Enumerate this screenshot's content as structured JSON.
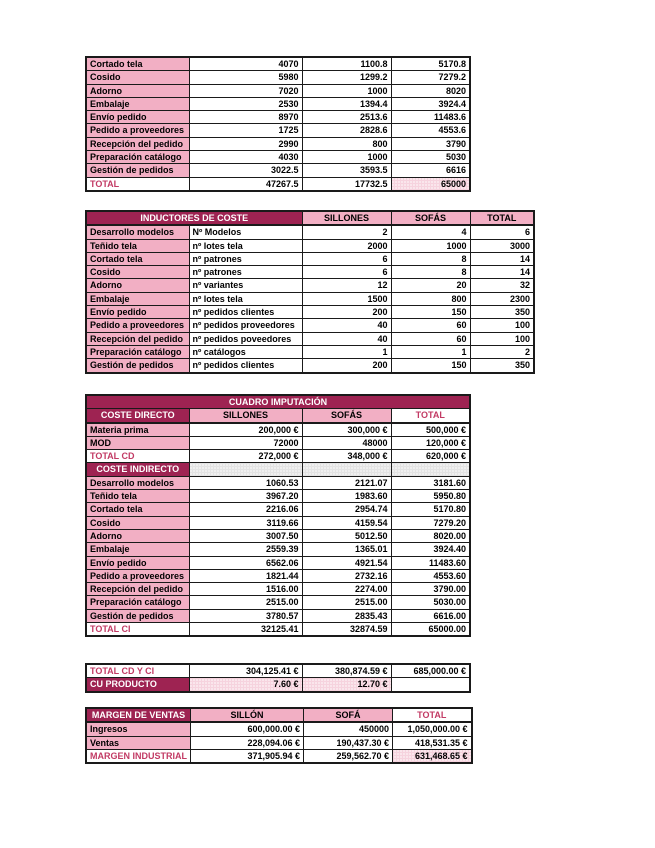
{
  "colors": {
    "maroon": "#9E2352",
    "pink": "#F2AFC4",
    "dotted_pink": "#F6D3DE",
    "red_text": "#C23A64",
    "dotted_gray": "#E3E3E3",
    "border": "#1A1A1A"
  },
  "tables": [
    {
      "id": "t1",
      "name": "activity-cost-totals-table",
      "rows": [
        {
          "cells": [
            {
              "t": "Cortado tela",
              "s": "p"
            },
            {
              "t": "4070",
              "s": "n"
            },
            {
              "t": "1100.8",
              "s": "n"
            },
            {
              "t": "5170.8",
              "s": "n"
            }
          ]
        },
        {
          "cells": [
            {
              "t": "Cosido",
              "s": "p"
            },
            {
              "t": "5980",
              "s": "n"
            },
            {
              "t": "1299.2",
              "s": "n"
            },
            {
              "t": "7279.2",
              "s": "n"
            }
          ]
        },
        {
          "cells": [
            {
              "t": "Adorno",
              "s": "p"
            },
            {
              "t": "7020",
              "s": "n"
            },
            {
              "t": "1000",
              "s": "n"
            },
            {
              "t": "8020",
              "s": "n"
            }
          ]
        },
        {
          "cells": [
            {
              "t": "Embalaje",
              "s": "p"
            },
            {
              "t": "2530",
              "s": "n"
            },
            {
              "t": "1394.4",
              "s": "n"
            },
            {
              "t": "3924.4",
              "s": "n"
            }
          ]
        },
        {
          "cells": [
            {
              "t": "Envío pedido",
              "s": "p"
            },
            {
              "t": "8970",
              "s": "n"
            },
            {
              "t": "2513.6",
              "s": "n"
            },
            {
              "t": "11483.6",
              "s": "n"
            }
          ]
        },
        {
          "cells": [
            {
              "t": "Pedido a proveedores",
              "s": "p"
            },
            {
              "t": "1725",
              "s": "n"
            },
            {
              "t": "2828.6",
              "s": "n"
            },
            {
              "t": "4553.6",
              "s": "n"
            }
          ]
        },
        {
          "cells": [
            {
              "t": "Recepción del pedido",
              "s": "p"
            },
            {
              "t": "2990",
              "s": "n"
            },
            {
              "t": "800",
              "s": "n"
            },
            {
              "t": "3790",
              "s": "n"
            }
          ]
        },
        {
          "cells": [
            {
              "t": "Preparación catálogo",
              "s": "p"
            },
            {
              "t": "4030",
              "s": "n"
            },
            {
              "t": "1000",
              "s": "n"
            },
            {
              "t": "5030",
              "s": "n"
            }
          ]
        },
        {
          "cells": [
            {
              "t": "Gestión de pedidos",
              "s": "p"
            },
            {
              "t": "3022.5",
              "s": "n"
            },
            {
              "t": "3593.5",
              "s": "n"
            },
            {
              "t": "6616",
              "s": "n"
            }
          ]
        },
        {
          "cells": [
            {
              "t": "TOTAL",
              "s": "r"
            },
            {
              "t": "47267.5",
              "s": "n"
            },
            {
              "t": "17732.5",
              "s": "n"
            },
            {
              "t": "65000",
              "s": "dp"
            }
          ]
        }
      ]
    },
    {
      "id": "t2",
      "name": "cost-drivers-table",
      "rows": [
        {
          "hd": true,
          "cells": [
            {
              "t": "INDUCTORES DE COSTE",
              "s": "m",
              "span": 2
            },
            {
              "t": "SILLONES",
              "s": "hp"
            },
            {
              "t": "SOFÁS",
              "s": "hp"
            },
            {
              "t": "TOTAL",
              "s": "hp"
            }
          ]
        },
        {
          "cells": [
            {
              "t": "Desarrollo modelos",
              "s": "p"
            },
            {
              "t": "Nº Modelos",
              "s": "w"
            },
            {
              "t": "2",
              "s": "n"
            },
            {
              "t": "4",
              "s": "n"
            },
            {
              "t": "6",
              "s": "n"
            }
          ]
        },
        {
          "cells": [
            {
              "t": "Teñido tela",
              "s": "p"
            },
            {
              "t": "nº lotes tela",
              "s": "w"
            },
            {
              "t": "2000",
              "s": "n"
            },
            {
              "t": "1000",
              "s": "n"
            },
            {
              "t": "3000",
              "s": "n"
            }
          ]
        },
        {
          "cells": [
            {
              "t": "Cortado tela",
              "s": "p"
            },
            {
              "t": "nº patrones",
              "s": "w"
            },
            {
              "t": "6",
              "s": "n"
            },
            {
              "t": "8",
              "s": "n"
            },
            {
              "t": "14",
              "s": "n"
            }
          ]
        },
        {
          "cells": [
            {
              "t": "Cosido",
              "s": "p"
            },
            {
              "t": "nº patrones",
              "s": "w"
            },
            {
              "t": "6",
              "s": "n"
            },
            {
              "t": "8",
              "s": "n"
            },
            {
              "t": "14",
              "s": "n"
            }
          ]
        },
        {
          "cells": [
            {
              "t": "Adorno",
              "s": "p"
            },
            {
              "t": "nº variantes",
              "s": "w"
            },
            {
              "t": "12",
              "s": "n"
            },
            {
              "t": "20",
              "s": "n"
            },
            {
              "t": "32",
              "s": "n"
            }
          ]
        },
        {
          "cells": [
            {
              "t": "Embalaje",
              "s": "p"
            },
            {
              "t": "nº lotes tela",
              "s": "w"
            },
            {
              "t": "1500",
              "s": "n"
            },
            {
              "t": "800",
              "s": "n"
            },
            {
              "t": "2300",
              "s": "n"
            }
          ]
        },
        {
          "cells": [
            {
              "t": "Envío pedido",
              "s": "p"
            },
            {
              "t": "nº pedidos clientes",
              "s": "w"
            },
            {
              "t": "200",
              "s": "n"
            },
            {
              "t": "150",
              "s": "n"
            },
            {
              "t": "350",
              "s": "n"
            }
          ]
        },
        {
          "cells": [
            {
              "t": "Pedido a proveedores",
              "s": "p"
            },
            {
              "t": "nº pedidos proveedores",
              "s": "w"
            },
            {
              "t": "40",
              "s": "n"
            },
            {
              "t": "60",
              "s": "n"
            },
            {
              "t": "100",
              "s": "n"
            }
          ]
        },
        {
          "cells": [
            {
              "t": "Recepción del pedido",
              "s": "p"
            },
            {
              "t": "nº pedidos poveedores",
              "s": "w"
            },
            {
              "t": "40",
              "s": "n"
            },
            {
              "t": "60",
              "s": "n"
            },
            {
              "t": "100",
              "s": "n"
            }
          ]
        },
        {
          "cells": [
            {
              "t": "Preparación catálogo",
              "s": "p"
            },
            {
              "t": "nº catálogos",
              "s": "w"
            },
            {
              "t": "1",
              "s": "n"
            },
            {
              "t": "1",
              "s": "n"
            },
            {
              "t": "2",
              "s": "n"
            }
          ]
        },
        {
          "cells": [
            {
              "t": "Gestión de pedidos",
              "s": "p"
            },
            {
              "t": "nº pedidos clientes",
              "s": "w"
            },
            {
              "t": "200",
              "s": "n"
            },
            {
              "t": "150",
              "s": "n"
            },
            {
              "t": "350",
              "s": "n"
            }
          ]
        }
      ]
    },
    {
      "id": "t3",
      "name": "imputation-table",
      "rows": [
        {
          "cells": [
            {
              "t": "CUADRO IMPUTACIÓN",
              "s": "m",
              "span": 4
            }
          ]
        },
        {
          "hd": true,
          "cells": [
            {
              "t": "COSTE DIRECTO",
              "s": "m"
            },
            {
              "t": "SILLONES",
              "s": "hp"
            },
            {
              "t": "SOFÁS",
              "s": "hp"
            },
            {
              "t": "TOTAL",
              "s": "hr"
            }
          ]
        },
        {
          "cells": [
            {
              "t": "Materia prima",
              "s": "p"
            },
            {
              "t": "200,000 €",
              "s": "n"
            },
            {
              "t": "300,000 €",
              "s": "n"
            },
            {
              "t": "500,000 €",
              "s": "n"
            }
          ]
        },
        {
          "cells": [
            {
              "t": "MOD",
              "s": "p"
            },
            {
              "t": "72000",
              "s": "n"
            },
            {
              "t": "48000",
              "s": "n"
            },
            {
              "t": "120,000 €",
              "s": "n"
            }
          ]
        },
        {
          "cells": [
            {
              "t": "TOTAL CD",
              "s": "r"
            },
            {
              "t": "272,000 €",
              "s": "n"
            },
            {
              "t": "348,000 €",
              "s": "n"
            },
            {
              "t": "620,000 €",
              "s": "n"
            }
          ]
        },
        {
          "cells": [
            {
              "t": "COSTE INDIRECTO",
              "s": "m"
            },
            {
              "t": "",
              "s": "dg"
            },
            {
              "t": "",
              "s": "dg"
            },
            {
              "t": "",
              "s": "dg"
            }
          ]
        },
        {
          "cells": [
            {
              "t": "Desarrollo modelos",
              "s": "p"
            },
            {
              "t": "1060.53",
              "s": "n"
            },
            {
              "t": "2121.07",
              "s": "n"
            },
            {
              "t": "3181.60",
              "s": "n"
            }
          ]
        },
        {
          "cells": [
            {
              "t": "Teñido tela",
              "s": "p"
            },
            {
              "t": "3967.20",
              "s": "n"
            },
            {
              "t": "1983.60",
              "s": "n"
            },
            {
              "t": "5950.80",
              "s": "n"
            }
          ]
        },
        {
          "cells": [
            {
              "t": "Cortado tela",
              "s": "p"
            },
            {
              "t": "2216.06",
              "s": "n"
            },
            {
              "t": "2954.74",
              "s": "n"
            },
            {
              "t": "5170.80",
              "s": "n"
            }
          ]
        },
        {
          "cells": [
            {
              "t": "Cosido",
              "s": "p"
            },
            {
              "t": "3119.66",
              "s": "n"
            },
            {
              "t": "4159.54",
              "s": "n"
            },
            {
              "t": "7279.20",
              "s": "n"
            }
          ]
        },
        {
          "cells": [
            {
              "t": "Adorno",
              "s": "p"
            },
            {
              "t": "3007.50",
              "s": "n"
            },
            {
              "t": "5012.50",
              "s": "n"
            },
            {
              "t": "8020.00",
              "s": "n"
            }
          ]
        },
        {
          "cells": [
            {
              "t": "Embalaje",
              "s": "p"
            },
            {
              "t": "2559.39",
              "s": "n"
            },
            {
              "t": "1365.01",
              "s": "n"
            },
            {
              "t": "3924.40",
              "s": "n"
            }
          ]
        },
        {
          "cells": [
            {
              "t": "Envío pedido",
              "s": "p"
            },
            {
              "t": "6562.06",
              "s": "n"
            },
            {
              "t": "4921.54",
              "s": "n"
            },
            {
              "t": "11483.60",
              "s": "n"
            }
          ]
        },
        {
          "cells": [
            {
              "t": "Pedido a proveedores",
              "s": "p"
            },
            {
              "t": "1821.44",
              "s": "n"
            },
            {
              "t": "2732.16",
              "s": "n"
            },
            {
              "t": "4553.60",
              "s": "n"
            }
          ]
        },
        {
          "cells": [
            {
              "t": "Recepción del pedido",
              "s": "p"
            },
            {
              "t": "1516.00",
              "s": "n"
            },
            {
              "t": "2274.00",
              "s": "n"
            },
            {
              "t": "3790.00",
              "s": "n"
            }
          ]
        },
        {
          "cells": [
            {
              "t": "Preparación catálogo",
              "s": "p"
            },
            {
              "t": "2515.00",
              "s": "n"
            },
            {
              "t": "2515.00",
              "s": "n"
            },
            {
              "t": "5030.00",
              "s": "n"
            }
          ]
        },
        {
          "cells": [
            {
              "t": "Gestión de pedidos",
              "s": "p"
            },
            {
              "t": "3780.57",
              "s": "n"
            },
            {
              "t": "2835.43",
              "s": "n"
            },
            {
              "t": "6616.00",
              "s": "n"
            }
          ]
        },
        {
          "cells": [
            {
              "t": "TOTAL CI",
              "s": "r"
            },
            {
              "t": "32125.41",
              "s": "n"
            },
            {
              "t": "32874.59",
              "s": "n"
            },
            {
              "t": "65000.00",
              "s": "n"
            }
          ]
        }
      ]
    },
    {
      "id": "t4",
      "name": "unit-cost-table",
      "rows": [
        {
          "cells": [
            {
              "t": "TOTAL CD Y CI",
              "s": "r"
            },
            {
              "t": "304,125.41 €",
              "s": "n"
            },
            {
              "t": "380,874.59 €",
              "s": "n"
            },
            {
              "t": "685,000.00 €",
              "s": "n"
            }
          ]
        },
        {
          "cells": [
            {
              "t": "CU PRODUCTO",
              "s": "ml"
            },
            {
              "t": "7.60 €",
              "s": "dp"
            },
            {
              "t": "12.70 €",
              "s": "dp"
            },
            {
              "t": "",
              "s": "e"
            }
          ]
        }
      ]
    },
    {
      "id": "t5",
      "name": "sales-margin-table",
      "rows": [
        {
          "hd": true,
          "cells": [
            {
              "t": "MARGEN DE VENTAS",
              "s": "m"
            },
            {
              "t": "SILLÓN",
              "s": "hp"
            },
            {
              "t": "SOFÁ",
              "s": "hp"
            },
            {
              "t": "TOTAL",
              "s": "hr"
            }
          ]
        },
        {
          "cells": [
            {
              "t": "Ingresos",
              "s": "p"
            },
            {
              "t": "600,000.00 €",
              "s": "n"
            },
            {
              "t": "450000",
              "s": "n"
            },
            {
              "t": "1,050,000.00 €",
              "s": "n"
            }
          ]
        },
        {
          "cells": [
            {
              "t": "Ventas",
              "s": "p"
            },
            {
              "t": "228,094.06 €",
              "s": "n"
            },
            {
              "t": "190,437.30 €",
              "s": "n"
            },
            {
              "t": "418,531.35 €",
              "s": "n"
            }
          ]
        },
        {
          "cells": [
            {
              "t": "MARGEN INDUSTRIAL",
              "s": "r"
            },
            {
              "t": "371,905.94 €",
              "s": "n"
            },
            {
              "t": "259,562.70 €",
              "s": "n"
            },
            {
              "t": "631,468.65 €",
              "s": "dp"
            }
          ]
        }
      ]
    }
  ]
}
